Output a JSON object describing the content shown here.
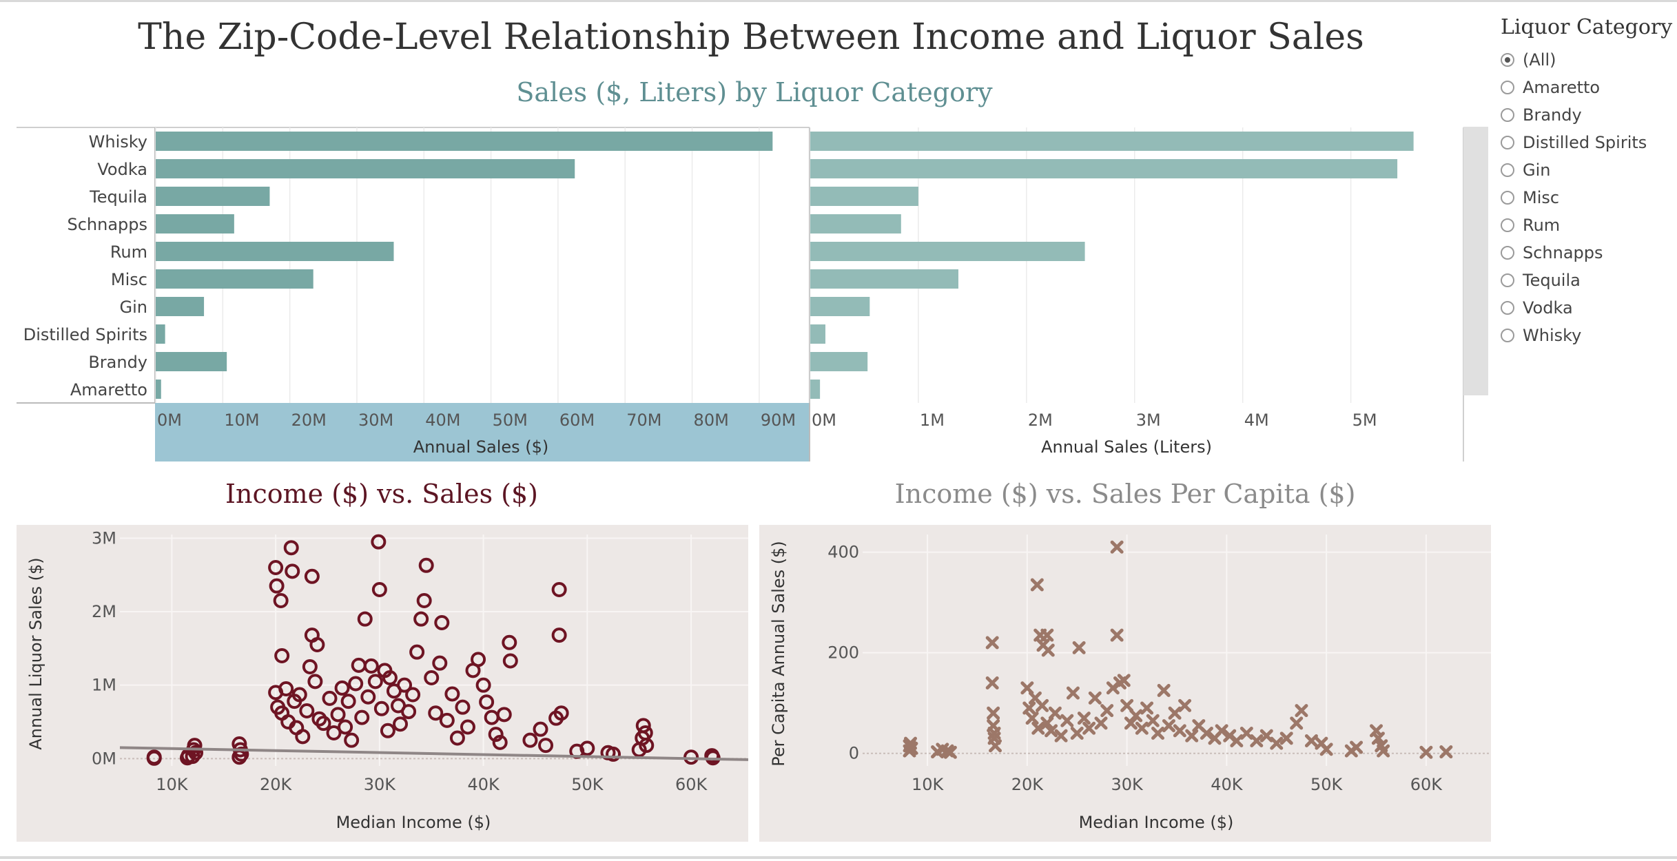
{
  "title": "The Zip-Code-Level Relationship Between Income and Liquor Sales",
  "bar_section_title": "Sales ($, Liters) by Liquor Category",
  "scatter_left_title": "Income ($) vs. Sales ($)",
  "scatter_right_title": "Income ($) vs. Sales Per Capita ($)",
  "legend": {
    "title": "Liquor Category",
    "selected": "(All)",
    "items": [
      "(All)",
      "Amaretto",
      "Brandy",
      "Distilled Spirits",
      "Gin",
      "Misc",
      "Rum",
      "Schnapps",
      "Tequila",
      "Vodka",
      "Whisky"
    ]
  },
  "colors": {
    "bar_dollars": "#78a8a4",
    "bar_liters": "#93bbb7",
    "axis_highlight": "#9cc5d3",
    "scatter_left": "#6e1423",
    "scatter_right": "#9c7768",
    "trend_line": "#8f8686",
    "panel_bg": "#ede8e6"
  },
  "chart_data": [
    {
      "type": "bar",
      "orientation": "horizontal",
      "categories": [
        "Whisky",
        "Vodka",
        "Tequila",
        "Schnapps",
        "Rum",
        "Misc",
        "Gin",
        "Distilled Spirits",
        "Brandy",
        "Amaretto"
      ],
      "values": [
        92000000,
        62500000,
        17000000,
        11700000,
        35500000,
        23500000,
        7200000,
        1400000,
        10600000,
        800000
      ],
      "xlabel": "Annual Sales ($)",
      "xlim": [
        0,
        97000000
      ],
      "ticks": [
        0,
        10000000,
        20000000,
        30000000,
        40000000,
        50000000,
        60000000,
        70000000,
        80000000,
        90000000
      ],
      "tick_labels": [
        "0M",
        "10M",
        "20M",
        "30M",
        "40M",
        "50M",
        "60M",
        "70M",
        "80M",
        "90M"
      ]
    },
    {
      "type": "bar",
      "orientation": "horizontal",
      "categories": [
        "Whisky",
        "Vodka",
        "Tequila",
        "Schnapps",
        "Rum",
        "Misc",
        "Gin",
        "Distilled Spirits",
        "Brandy",
        "Amaretto"
      ],
      "values": [
        5580000,
        5430000,
        1000000,
        840000,
        2540000,
        1370000,
        550000,
        140000,
        530000,
        90000
      ],
      "xlabel": "Annual Sales (Liters)",
      "xlim": [
        0,
        5850000
      ],
      "ticks": [
        0,
        1000000,
        2000000,
        3000000,
        4000000,
        5000000
      ],
      "tick_labels": [
        "0M",
        "1M",
        "2M",
        "3M",
        "4M",
        "5M"
      ]
    },
    {
      "type": "scatter",
      "marker": "circle",
      "title": "Income ($) vs. Sales ($)",
      "xlabel": "Median Income ($)",
      "ylabel": "Annual Liquor Sales ($)",
      "xlim": [
        5000,
        65500
      ],
      "ylim": [
        -100000,
        3050000
      ],
      "xticks": [
        10000,
        20000,
        30000,
        40000,
        50000,
        60000
      ],
      "xtick_labels": [
        "10K",
        "20K",
        "30K",
        "40K",
        "50K",
        "60K"
      ],
      "yticks": [
        0,
        1000000,
        2000000,
        3000000
      ],
      "ytick_labels": [
        "0M",
        "1M",
        "2M",
        "3M"
      ],
      "trend_line": [
        [
          5000,
          150000
        ],
        [
          65500,
          -15000
        ]
      ],
      "points": [
        [
          8300,
          20000
        ],
        [
          8300,
          5000
        ],
        [
          11500,
          10000
        ],
        [
          11600,
          40000
        ],
        [
          12000,
          30000
        ],
        [
          12100,
          120000
        ],
        [
          12200,
          180000
        ],
        [
          12300,
          80000
        ],
        [
          16500,
          20000
        ],
        [
          16500,
          200000
        ],
        [
          16600,
          120000
        ],
        [
          16700,
          60000
        ],
        [
          20000,
          2600000
        ],
        [
          20100,
          2350000
        ],
        [
          20500,
          2150000
        ],
        [
          20600,
          1400000
        ],
        [
          21500,
          2870000
        ],
        [
          21600,
          2550000
        ],
        [
          23500,
          2480000
        ],
        [
          23500,
          1680000
        ],
        [
          20000,
          900000
        ],
        [
          20200,
          700000
        ],
        [
          20600,
          620000
        ],
        [
          21000,
          950000
        ],
        [
          21200,
          500000
        ],
        [
          21800,
          780000
        ],
        [
          22000,
          420000
        ],
        [
          22300,
          870000
        ],
        [
          22600,
          300000
        ],
        [
          23000,
          650000
        ],
        [
          23300,
          1250000
        ],
        [
          23800,
          1050000
        ],
        [
          24000,
          1550000
        ],
        [
          24200,
          540000
        ],
        [
          24600,
          480000
        ],
        [
          25200,
          820000
        ],
        [
          25600,
          350000
        ],
        [
          26000,
          600000
        ],
        [
          26400,
          960000
        ],
        [
          26700,
          430000
        ],
        [
          27000,
          780000
        ],
        [
          27300,
          250000
        ],
        [
          27700,
          1020000
        ],
        [
          28000,
          1270000
        ],
        [
          28300,
          560000
        ],
        [
          28600,
          1900000
        ],
        [
          28900,
          840000
        ],
        [
          29200,
          1260000
        ],
        [
          29600,
          1050000
        ],
        [
          29900,
          2950000
        ],
        [
          30000,
          2300000
        ],
        [
          30200,
          680000
        ],
        [
          30500,
          1200000
        ],
        [
          30800,
          380000
        ],
        [
          31000,
          1100000
        ],
        [
          31400,
          920000
        ],
        [
          31800,
          720000
        ],
        [
          32000,
          470000
        ],
        [
          32400,
          1000000
        ],
        [
          32800,
          640000
        ],
        [
          33200,
          870000
        ],
        [
          33600,
          1450000
        ],
        [
          34000,
          1900000
        ],
        [
          34300,
          2150000
        ],
        [
          34500,
          2630000
        ],
        [
          35000,
          1100000
        ],
        [
          35400,
          620000
        ],
        [
          35800,
          1300000
        ],
        [
          36000,
          1850000
        ],
        [
          36500,
          520000
        ],
        [
          37000,
          880000
        ],
        [
          37500,
          280000
        ],
        [
          38000,
          700000
        ],
        [
          38500,
          430000
        ],
        [
          39000,
          1200000
        ],
        [
          39500,
          1350000
        ],
        [
          40000,
          1000000
        ],
        [
          40300,
          770000
        ],
        [
          40800,
          560000
        ],
        [
          41200,
          330000
        ],
        [
          41600,
          220000
        ],
        [
          42000,
          600000
        ],
        [
          42500,
          1580000
        ],
        [
          42600,
          1330000
        ],
        [
          44500,
          250000
        ],
        [
          45500,
          400000
        ],
        [
          46000,
          180000
        ],
        [
          47000,
          550000
        ],
        [
          47300,
          2300000
        ],
        [
          47300,
          1680000
        ],
        [
          47500,
          620000
        ],
        [
          49000,
          100000
        ],
        [
          50000,
          140000
        ],
        [
          52000,
          80000
        ],
        [
          52500,
          60000
        ],
        [
          55000,
          120000
        ],
        [
          55300,
          280000
        ],
        [
          55400,
          450000
        ],
        [
          55600,
          350000
        ],
        [
          55700,
          180000
        ],
        [
          60000,
          20000
        ],
        [
          62000,
          40000
        ],
        [
          62100,
          10000
        ]
      ]
    },
    {
      "type": "scatter",
      "marker": "x",
      "title": "Income ($) vs. Sales Per Capita ($)",
      "xlabel": "Median Income ($)",
      "ylabel": "Per Capita Annual Sales ($)",
      "xlim": [
        3500,
        66500
      ],
      "ylim": [
        -25,
        435
      ],
      "xticks": [
        10000,
        20000,
        30000,
        40000,
        50000,
        60000
      ],
      "xtick_labels": [
        "10K",
        "20K",
        "30K",
        "40K",
        "50K",
        "60K"
      ],
      "yticks": [
        0,
        200,
        400
      ],
      "ytick_labels": [
        "0",
        "200",
        "400"
      ],
      "points": [
        [
          8200,
          5
        ],
        [
          8200,
          15
        ],
        [
          8300,
          20
        ],
        [
          8400,
          10
        ],
        [
          11000,
          3
        ],
        [
          11500,
          8
        ],
        [
          12000,
          5
        ],
        [
          12300,
          2
        ],
        [
          16500,
          220
        ],
        [
          16500,
          140
        ],
        [
          16600,
          80
        ],
        [
          16600,
          55
        ],
        [
          16700,
          40
        ],
        [
          16700,
          30
        ],
        [
          16800,
          15
        ],
        [
          20000,
          130
        ],
        [
          20200,
          90
        ],
        [
          20500,
          70
        ],
        [
          20800,
          110
        ],
        [
          21000,
          335
        ],
        [
          21300,
          235
        ],
        [
          21600,
          215
        ],
        [
          22000,
          235
        ],
        [
          22100,
          205
        ],
        [
          21100,
          50
        ],
        [
          21500,
          95
        ],
        [
          22000,
          60
        ],
        [
          22400,
          45
        ],
        [
          22800,
          80
        ],
        [
          23400,
          35
        ],
        [
          24000,
          65
        ],
        [
          24600,
          120
        ],
        [
          25000,
          40
        ],
        [
          25200,
          210
        ],
        [
          25700,
          70
        ],
        [
          26200,
          50
        ],
        [
          26800,
          110
        ],
        [
          27400,
          60
        ],
        [
          28000,
          85
        ],
        [
          28600,
          130
        ],
        [
          29000,
          410
        ],
        [
          29000,
          235
        ],
        [
          29300,
          140
        ],
        [
          29700,
          145
        ],
        [
          30000,
          95
        ],
        [
          30400,
          60
        ],
        [
          30900,
          75
        ],
        [
          31500,
          50
        ],
        [
          32000,
          90
        ],
        [
          32600,
          65
        ],
        [
          33100,
          40
        ],
        [
          33700,
          125
        ],
        [
          34200,
          55
        ],
        [
          34800,
          80
        ],
        [
          35300,
          45
        ],
        [
          35800,
          95
        ],
        [
          36500,
          35
        ],
        [
          37200,
          55
        ],
        [
          38000,
          40
        ],
        [
          38800,
          30
        ],
        [
          39500,
          45
        ],
        [
          40300,
          35
        ],
        [
          41000,
          25
        ],
        [
          42000,
          40
        ],
        [
          43000,
          25
        ],
        [
          44000,
          35
        ],
        [
          45000,
          20
        ],
        [
          46000,
          30
        ],
        [
          47000,
          60
        ],
        [
          47500,
          85
        ],
        [
          48500,
          25
        ],
        [
          49500,
          20
        ],
        [
          50000,
          8
        ],
        [
          52500,
          5
        ],
        [
          53000,
          12
        ],
        [
          55000,
          45
        ],
        [
          55200,
          30
        ],
        [
          55500,
          15
        ],
        [
          55700,
          5
        ],
        [
          60000,
          2
        ],
        [
          62000,
          3
        ]
      ]
    }
  ]
}
